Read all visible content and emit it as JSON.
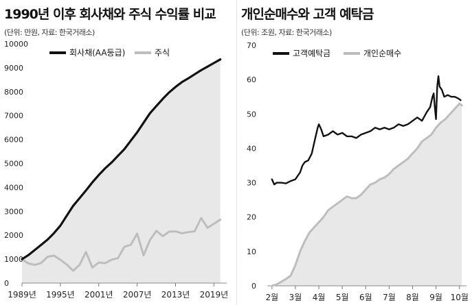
{
  "chart_data": [
    {
      "type": "line",
      "title": "1990년 이후 회사채와 주식 수익률 비교",
      "subtitle": "(단위: 만원, 자료: 한국거래소)",
      "xlabel": "",
      "ylabel": "",
      "ylim": [
        0,
        10000
      ],
      "xlim": [
        1989,
        2021
      ],
      "yticks": [
        0,
        1000,
        2000,
        3000,
        4000,
        5000,
        6000,
        7000,
        8000,
        9000,
        10000
      ],
      "ytick_labels": [
        "0",
        "1000",
        "2000",
        "3000",
        "4000",
        "5000",
        "6000",
        "7000",
        "8000",
        "9000",
        "10000"
      ],
      "xticks": [
        1989,
        1995,
        2001,
        2007,
        2013,
        2019
      ],
      "xtick_labels": [
        "1989년",
        "1995년",
        "2001년",
        "2007년",
        "2013년",
        "2019년"
      ],
      "legend_position": "top-left",
      "grid": false,
      "series": [
        {
          "name": "회사채(AA등급)",
          "color": "#111111",
          "fill": "#e8e8e8",
          "x": [
            1989,
            1990,
            1991,
            1992,
            1993,
            1994,
            1995,
            1996,
            1997,
            1998,
            1999,
            2000,
            2001,
            2002,
            2003,
            2004,
            2005,
            2006,
            2007,
            2008,
            2009,
            2010,
            2011,
            2012,
            2013,
            2014,
            2015,
            2016,
            2017,
            2018,
            2019,
            2020
          ],
          "values": [
            1000,
            1170,
            1380,
            1600,
            1820,
            2090,
            2400,
            2820,
            3230,
            3550,
            3870,
            4210,
            4520,
            4800,
            5040,
            5320,
            5600,
            5950,
            6300,
            6700,
            7100,
            7400,
            7700,
            7970,
            8200,
            8400,
            8560,
            8730,
            8900,
            9050,
            9200,
            9350
          ]
        },
        {
          "name": "주식",
          "color": "#bdbdbd",
          "x": [
            1989,
            1990,
            1991,
            1992,
            1993,
            1994,
            1995,
            1996,
            1997,
            1998,
            1999,
            2000,
            2001,
            2002,
            2003,
            2004,
            2005,
            2006,
            2007,
            2008,
            2009,
            2010,
            2011,
            2012,
            2013,
            2014,
            2015,
            2016,
            2017,
            2018,
            2019,
            2020
          ],
          "values": [
            1000,
            820,
            760,
            840,
            1100,
            1150,
            970,
            770,
            520,
            760,
            1300,
            650,
            860,
            830,
            980,
            1040,
            1520,
            1600,
            2070,
            1160,
            1800,
            2180,
            1960,
            2150,
            2160,
            2080,
            2130,
            2170,
            2720,
            2310,
            2480,
            2650
          ]
        }
      ]
    },
    {
      "type": "line",
      "title": "개인순매수와 고객 예탁금",
      "subtitle": "(단위: 조원, 자료: 한국거래소)",
      "xlabel": "",
      "ylabel": "",
      "ylim": [
        0,
        70
      ],
      "xlim": [
        1.8,
        10.3
      ],
      "yticks": [
        0,
        10,
        20,
        30,
        40,
        50,
        60,
        70
      ],
      "ytick_labels": [
        "0",
        "10",
        "20",
        "30",
        "40",
        "50",
        "60",
        "70"
      ],
      "xticks": [
        2,
        3,
        4,
        5,
        6,
        7,
        8,
        9,
        10
      ],
      "xtick_labels": [
        "2월",
        "3월",
        "4월",
        "5월",
        "6월",
        "7월",
        "8월",
        "9월",
        "10월"
      ],
      "legend_position": "top-left",
      "grid": false,
      "series": [
        {
          "name": "고객예탁금",
          "color": "#111111",
          "x": [
            2.0,
            2.1,
            2.2,
            2.4,
            2.6,
            2.8,
            3.0,
            3.2,
            3.3,
            3.4,
            3.55,
            3.7,
            3.85,
            3.95,
            4.0,
            4.1,
            4.2,
            4.4,
            4.6,
            4.8,
            5.0,
            5.2,
            5.4,
            5.6,
            5.8,
            6.0,
            6.2,
            6.4,
            6.6,
            6.8,
            7.0,
            7.2,
            7.4,
            7.6,
            7.8,
            8.0,
            8.2,
            8.4,
            8.6,
            8.75,
            8.85,
            8.9,
            8.95,
            9.0,
            9.05,
            9.1,
            9.15,
            9.25,
            9.35,
            9.5,
            9.65,
            9.8,
            9.95,
            10.05
          ],
          "values": [
            31,
            29.5,
            30,
            30,
            29.8,
            30.5,
            31,
            33,
            35,
            36,
            36.5,
            38.5,
            43,
            46,
            47,
            45.5,
            43.5,
            44,
            45,
            44,
            44.5,
            43.5,
            43.5,
            43,
            44,
            44.5,
            45,
            46,
            45.5,
            46,
            45.5,
            46,
            47,
            46.5,
            47,
            48,
            49,
            48,
            50.5,
            52,
            55,
            56,
            52,
            48.5,
            58,
            61,
            58,
            57,
            55,
            55.5,
            55,
            55,
            54.5,
            54
          ]
        },
        {
          "name": "개인순매수",
          "color": "#bdbdbd",
          "fill": "#e8e8e8",
          "x": [
            2.0,
            2.2,
            2.4,
            2.6,
            2.8,
            3.0,
            3.2,
            3.4,
            3.6,
            3.8,
            4.0,
            4.2,
            4.4,
            4.6,
            4.8,
            5.0,
            5.2,
            5.4,
            5.6,
            5.8,
            6.0,
            6.2,
            6.4,
            6.6,
            6.8,
            7.0,
            7.2,
            7.4,
            7.6,
            7.8,
            8.0,
            8.2,
            8.4,
            8.6,
            8.8,
            9.0,
            9.2,
            9.4,
            9.6,
            9.8,
            10.0,
            10.1
          ],
          "values": [
            0,
            0.4,
            1.2,
            2,
            3,
            6,
            10,
            13,
            15.5,
            17,
            18.5,
            20,
            22,
            23,
            24,
            25,
            26,
            25.5,
            25.5,
            26.5,
            28,
            29.5,
            30,
            31,
            31.5,
            32.5,
            34,
            35,
            36,
            37,
            38.5,
            40,
            42,
            43,
            44,
            46,
            47.5,
            48.5,
            50,
            51.5,
            53,
            52.5
          ]
        }
      ]
    }
  ]
}
